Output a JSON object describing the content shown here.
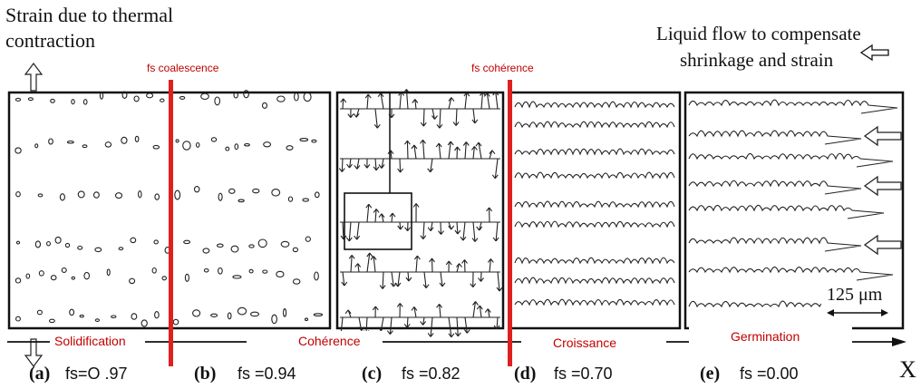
{
  "annotations": {
    "strain_line1": "Strain due to thermal",
    "strain_line2": "contraction",
    "liquid_line1": "Liquid flow to compensate",
    "liquid_line2": "shrinkage and strain",
    "fs_coalescence": "fs coalescence",
    "fs_coherence": "fs cohérence",
    "scale": "125 μm",
    "axis_x": "X"
  },
  "stages": [
    "Solidification",
    "Cohérence",
    "Croissance",
    "Germination"
  ],
  "panels": [
    {
      "letter": "(a)",
      "fs_label": "fs=O .97"
    },
    {
      "letter": "(b)",
      "fs_label": "fs =0.94"
    },
    {
      "letter": "(c)",
      "fs_label": "fs =0.82"
    },
    {
      "letter": "(d)",
      "fs_label": "fs =0.70"
    },
    {
      "letter": "(e)",
      "fs_label": "fs =0.00"
    }
  ],
  "colors": {
    "marker": "#e02020",
    "stage_text": "#c00000",
    "line": "#111111"
  }
}
